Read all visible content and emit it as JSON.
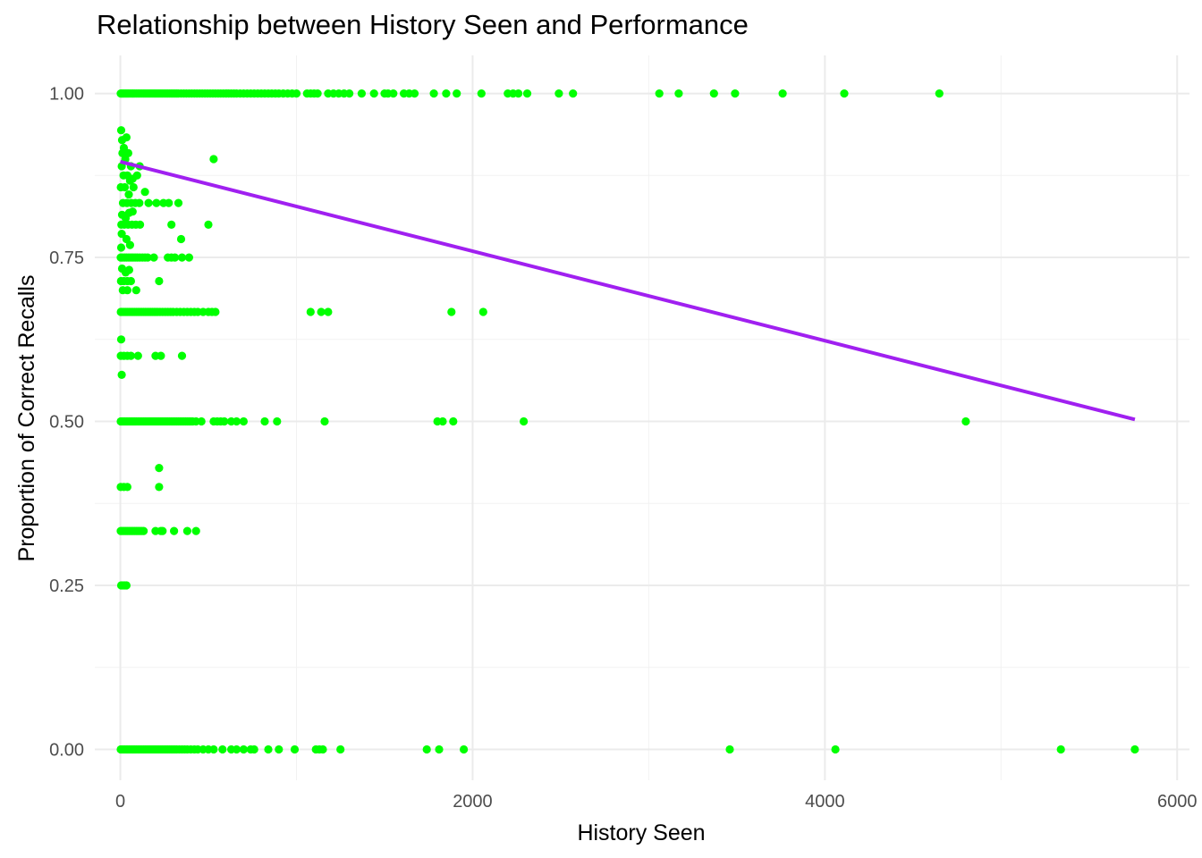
{
  "chart_data": {
    "type": "scatter",
    "title": "Relationship between History Seen and Performance",
    "xlabel": "History Seen",
    "ylabel": "Proportion of Correct Recalls",
    "xlim": [
      -145,
      6070
    ],
    "ylim": [
      -0.047,
      1.058
    ],
    "x_ticks": [
      0,
      2000,
      4000,
      6000
    ],
    "x_tick_labels": [
      "0",
      "2000",
      "4000",
      "6000"
    ],
    "y_ticks": [
      0,
      0.25,
      0.5,
      0.75,
      1.0
    ],
    "y_tick_labels": [
      "0.00",
      "0.25",
      "0.50",
      "0.75",
      "1.00"
    ],
    "grid": true,
    "legend": "none",
    "point_color": "#00ff00",
    "line_color": "#a020f0",
    "points": [
      [
        2,
        1.0
      ],
      [
        8,
        1.0
      ],
      [
        15,
        1.0
      ],
      [
        22,
        1.0
      ],
      [
        30,
        1.0
      ],
      [
        38,
        1.0
      ],
      [
        46,
        1.0
      ],
      [
        55,
        1.0
      ],
      [
        64,
        1.0
      ],
      [
        72,
        1.0
      ],
      [
        80,
        1.0
      ],
      [
        90,
        1.0
      ],
      [
        100,
        1.0
      ],
      [
        110,
        1.0
      ],
      [
        120,
        1.0
      ],
      [
        130,
        1.0
      ],
      [
        140,
        1.0
      ],
      [
        150,
        1.0
      ],
      [
        160,
        1.0
      ],
      [
        170,
        1.0
      ],
      [
        180,
        1.0
      ],
      [
        190,
        1.0
      ],
      [
        200,
        1.0
      ],
      [
        210,
        1.0
      ],
      [
        220,
        1.0
      ],
      [
        230,
        1.0
      ],
      [
        240,
        1.0
      ],
      [
        250,
        1.0
      ],
      [
        260,
        1.0
      ],
      [
        270,
        1.0
      ],
      [
        280,
        1.0
      ],
      [
        290,
        1.0
      ],
      [
        300,
        1.0
      ],
      [
        310,
        1.0
      ],
      [
        320,
        1.0
      ],
      [
        330,
        1.0
      ],
      [
        345,
        1.0
      ],
      [
        360,
        1.0
      ],
      [
        375,
        1.0
      ],
      [
        390,
        1.0
      ],
      [
        405,
        1.0
      ],
      [
        420,
        1.0
      ],
      [
        435,
        1.0
      ],
      [
        450,
        1.0
      ],
      [
        465,
        1.0
      ],
      [
        480,
        1.0
      ],
      [
        495,
        1.0
      ],
      [
        510,
        1.0
      ],
      [
        525,
        1.0
      ],
      [
        540,
        1.0
      ],
      [
        555,
        1.0
      ],
      [
        570,
        1.0
      ],
      [
        585,
        1.0
      ],
      [
        600,
        1.0
      ],
      [
        615,
        1.0
      ],
      [
        630,
        1.0
      ],
      [
        645,
        1.0
      ],
      [
        660,
        1.0
      ],
      [
        680,
        1.0
      ],
      [
        700,
        1.0
      ],
      [
        720,
        1.0
      ],
      [
        740,
        1.0
      ],
      [
        760,
        1.0
      ],
      [
        780,
        1.0
      ],
      [
        800,
        1.0
      ],
      [
        820,
        1.0
      ],
      [
        840,
        1.0
      ],
      [
        860,
        1.0
      ],
      [
        880,
        1.0
      ],
      [
        900,
        1.0
      ],
      [
        925,
        1.0
      ],
      [
        950,
        1.0
      ],
      [
        975,
        1.0
      ],
      [
        1000,
        1.0
      ],
      [
        1060,
        1.0
      ],
      [
        1080,
        1.0
      ],
      [
        1100,
        1.0
      ],
      [
        1120,
        1.0
      ],
      [
        1180,
        1.0
      ],
      [
        1210,
        1.0
      ],
      [
        1240,
        1.0
      ],
      [
        1270,
        1.0
      ],
      [
        1300,
        1.0
      ],
      [
        1370,
        1.0
      ],
      [
        1440,
        1.0
      ],
      [
        1500,
        1.0
      ],
      [
        1520,
        1.0
      ],
      [
        1550,
        1.0
      ],
      [
        1610,
        1.0
      ],
      [
        1640,
        1.0
      ],
      [
        1670,
        1.0
      ],
      [
        1780,
        1.0
      ],
      [
        1850,
        1.0
      ],
      [
        1910,
        1.0
      ],
      [
        2050,
        1.0
      ],
      [
        2200,
        1.0
      ],
      [
        2230,
        1.0
      ],
      [
        2260,
        1.0
      ],
      [
        2310,
        1.0
      ],
      [
        2490,
        1.0
      ],
      [
        2570,
        1.0
      ],
      [
        3060,
        1.0
      ],
      [
        3170,
        1.0
      ],
      [
        3370,
        1.0
      ],
      [
        3490,
        1.0
      ],
      [
        3760,
        1.0
      ],
      [
        4110,
        1.0
      ],
      [
        4650,
        1.0
      ],
      [
        5,
        0.944
      ],
      [
        10,
        0.929
      ],
      [
        20,
        0.917
      ],
      [
        35,
        0.933
      ],
      [
        12,
        0.909
      ],
      [
        28,
        0.9
      ],
      [
        45,
        0.909
      ],
      [
        60,
        0.889
      ],
      [
        8,
        0.889
      ],
      [
        18,
        0.875
      ],
      [
        40,
        0.875
      ],
      [
        55,
        0.867
      ],
      [
        70,
        0.87
      ],
      [
        95,
        0.875
      ],
      [
        110,
        0.889
      ],
      [
        3,
        0.857
      ],
      [
        25,
        0.857
      ],
      [
        48,
        0.846
      ],
      [
        75,
        0.857
      ],
      [
        15,
        0.833
      ],
      [
        38,
        0.833
      ],
      [
        62,
        0.833
      ],
      [
        85,
        0.833
      ],
      [
        108,
        0.833
      ],
      [
        160,
        0.833
      ],
      [
        205,
        0.833
      ],
      [
        245,
        0.833
      ],
      [
        275,
        0.833
      ],
      [
        330,
        0.833
      ],
      [
        6,
        0.8
      ],
      [
        22,
        0.8
      ],
      [
        44,
        0.8
      ],
      [
        66,
        0.8
      ],
      [
        88,
        0.8
      ],
      [
        112,
        0.8
      ],
      [
        290,
        0.8
      ],
      [
        500,
        0.8
      ],
      [
        530,
        0.9
      ],
      [
        140,
        0.85
      ],
      [
        10,
        0.815
      ],
      [
        30,
        0.81
      ],
      [
        50,
        0.818
      ],
      [
        70,
        0.82
      ],
      [
        8,
        0.786
      ],
      [
        35,
        0.778
      ],
      [
        5,
        0.765
      ],
      [
        55,
        0.769
      ],
      [
        345,
        0.778
      ],
      [
        2,
        0.75
      ],
      [
        12,
        0.75
      ],
      [
        24,
        0.75
      ],
      [
        36,
        0.75
      ],
      [
        48,
        0.75
      ],
      [
        60,
        0.75
      ],
      [
        72,
        0.75
      ],
      [
        84,
        0.75
      ],
      [
        96,
        0.75
      ],
      [
        110,
        0.75
      ],
      [
        125,
        0.75
      ],
      [
        140,
        0.75
      ],
      [
        155,
        0.75
      ],
      [
        190,
        0.75
      ],
      [
        270,
        0.75
      ],
      [
        290,
        0.75
      ],
      [
        310,
        0.75
      ],
      [
        350,
        0.75
      ],
      [
        390,
        0.75
      ],
      [
        10,
        0.733
      ],
      [
        30,
        0.727
      ],
      [
        50,
        0.731
      ],
      [
        4,
        0.714
      ],
      [
        20,
        0.714
      ],
      [
        40,
        0.714
      ],
      [
        60,
        0.714
      ],
      [
        220,
        0.714
      ],
      [
        14,
        0.7
      ],
      [
        40,
        0.7
      ],
      [
        90,
        0.7
      ],
      [
        3,
        0.667
      ],
      [
        12,
        0.667
      ],
      [
        22,
        0.667
      ],
      [
        32,
        0.667
      ],
      [
        42,
        0.667
      ],
      [
        52,
        0.667
      ],
      [
        62,
        0.667
      ],
      [
        72,
        0.667
      ],
      [
        82,
        0.667
      ],
      [
        92,
        0.667
      ],
      [
        102,
        0.667
      ],
      [
        112,
        0.667
      ],
      [
        122,
        0.667
      ],
      [
        132,
        0.667
      ],
      [
        142,
        0.667
      ],
      [
        152,
        0.667
      ],
      [
        162,
        0.667
      ],
      [
        172,
        0.667
      ],
      [
        182,
        0.667
      ],
      [
        192,
        0.667
      ],
      [
        202,
        0.667
      ],
      [
        212,
        0.667
      ],
      [
        225,
        0.667
      ],
      [
        240,
        0.667
      ],
      [
        255,
        0.667
      ],
      [
        270,
        0.667
      ],
      [
        285,
        0.667
      ],
      [
        300,
        0.667
      ],
      [
        320,
        0.667
      ],
      [
        340,
        0.667
      ],
      [
        360,
        0.667
      ],
      [
        380,
        0.667
      ],
      [
        400,
        0.667
      ],
      [
        420,
        0.667
      ],
      [
        440,
        0.667
      ],
      [
        470,
        0.667
      ],
      [
        500,
        0.667
      ],
      [
        520,
        0.667
      ],
      [
        540,
        0.667
      ],
      [
        1080,
        0.667
      ],
      [
        1140,
        0.667
      ],
      [
        1180,
        0.667
      ],
      [
        1880,
        0.667
      ],
      [
        2060,
        0.667
      ],
      [
        5,
        0.625
      ],
      [
        3,
        0.6
      ],
      [
        20,
        0.6
      ],
      [
        40,
        0.6
      ],
      [
        60,
        0.6
      ],
      [
        100,
        0.6
      ],
      [
        200,
        0.6
      ],
      [
        230,
        0.6
      ],
      [
        350,
        0.6
      ],
      [
        8,
        0.571
      ],
      [
        2,
        0.5
      ],
      [
        10,
        0.5
      ],
      [
        18,
        0.5
      ],
      [
        26,
        0.5
      ],
      [
        34,
        0.5
      ],
      [
        42,
        0.5
      ],
      [
        50,
        0.5
      ],
      [
        58,
        0.5
      ],
      [
        66,
        0.5
      ],
      [
        74,
        0.5
      ],
      [
        82,
        0.5
      ],
      [
        90,
        0.5
      ],
      [
        100,
        0.5
      ],
      [
        110,
        0.5
      ],
      [
        120,
        0.5
      ],
      [
        130,
        0.5
      ],
      [
        140,
        0.5
      ],
      [
        150,
        0.5
      ],
      [
        160,
        0.5
      ],
      [
        170,
        0.5
      ],
      [
        180,
        0.5
      ],
      [
        190,
        0.5
      ],
      [
        200,
        0.5
      ],
      [
        210,
        0.5
      ],
      [
        220,
        0.5
      ],
      [
        230,
        0.5
      ],
      [
        240,
        0.5
      ],
      [
        250,
        0.5
      ],
      [
        260,
        0.5
      ],
      [
        270,
        0.5
      ],
      [
        280,
        0.5
      ],
      [
        290,
        0.5
      ],
      [
        300,
        0.5
      ],
      [
        310,
        0.5
      ],
      [
        320,
        0.5
      ],
      [
        330,
        0.5
      ],
      [
        340,
        0.5
      ],
      [
        350,
        0.5
      ],
      [
        360,
        0.5
      ],
      [
        370,
        0.5
      ],
      [
        380,
        0.5
      ],
      [
        390,
        0.5
      ],
      [
        400,
        0.5
      ],
      [
        410,
        0.5
      ],
      [
        430,
        0.5
      ],
      [
        460,
        0.5
      ],
      [
        530,
        0.5
      ],
      [
        550,
        0.5
      ],
      [
        570,
        0.5
      ],
      [
        590,
        0.5
      ],
      [
        630,
        0.5
      ],
      [
        660,
        0.5
      ],
      [
        700,
        0.5
      ],
      [
        820,
        0.5
      ],
      [
        890,
        0.5
      ],
      [
        1160,
        0.5
      ],
      [
        1800,
        0.5
      ],
      [
        1830,
        0.5
      ],
      [
        1890,
        0.5
      ],
      [
        2290,
        0.5
      ],
      [
        4800,
        0.5
      ],
      [
        220,
        0.429
      ],
      [
        2,
        0.4
      ],
      [
        20,
        0.4
      ],
      [
        40,
        0.4
      ],
      [
        220,
        0.4
      ],
      [
        2,
        0.333
      ],
      [
        12,
        0.333
      ],
      [
        22,
        0.333
      ],
      [
        32,
        0.333
      ],
      [
        42,
        0.333
      ],
      [
        52,
        0.333
      ],
      [
        62,
        0.333
      ],
      [
        72,
        0.333
      ],
      [
        82,
        0.333
      ],
      [
        92,
        0.333
      ],
      [
        102,
        0.333
      ],
      [
        112,
        0.333
      ],
      [
        122,
        0.333
      ],
      [
        132,
        0.333
      ],
      [
        200,
        0.333
      ],
      [
        230,
        0.333
      ],
      [
        240,
        0.333
      ],
      [
        305,
        0.333
      ],
      [
        380,
        0.333
      ],
      [
        430,
        0.333
      ],
      [
        5,
        0.25
      ],
      [
        15,
        0.25
      ],
      [
        25,
        0.25
      ],
      [
        35,
        0.25
      ],
      [
        2,
        0.0
      ],
      [
        10,
        0.0
      ],
      [
        18,
        0.0
      ],
      [
        26,
        0.0
      ],
      [
        34,
        0.0
      ],
      [
        42,
        0.0
      ],
      [
        50,
        0.0
      ],
      [
        58,
        0.0
      ],
      [
        66,
        0.0
      ],
      [
        74,
        0.0
      ],
      [
        82,
        0.0
      ],
      [
        90,
        0.0
      ],
      [
        100,
        0.0
      ],
      [
        110,
        0.0
      ],
      [
        120,
        0.0
      ],
      [
        130,
        0.0
      ],
      [
        140,
        0.0
      ],
      [
        150,
        0.0
      ],
      [
        160,
        0.0
      ],
      [
        170,
        0.0
      ],
      [
        180,
        0.0
      ],
      [
        190,
        0.0
      ],
      [
        200,
        0.0
      ],
      [
        210,
        0.0
      ],
      [
        220,
        0.0
      ],
      [
        230,
        0.0
      ],
      [
        240,
        0.0
      ],
      [
        250,
        0.0
      ],
      [
        260,
        0.0
      ],
      [
        270,
        0.0
      ],
      [
        280,
        0.0
      ],
      [
        290,
        0.0
      ],
      [
        300,
        0.0
      ],
      [
        310,
        0.0
      ],
      [
        320,
        0.0
      ],
      [
        335,
        0.0
      ],
      [
        350,
        0.0
      ],
      [
        365,
        0.0
      ],
      [
        380,
        0.0
      ],
      [
        400,
        0.0
      ],
      [
        420,
        0.0
      ],
      [
        440,
        0.0
      ],
      [
        470,
        0.0
      ],
      [
        500,
        0.0
      ],
      [
        530,
        0.0
      ],
      [
        580,
        0.0
      ],
      [
        630,
        0.0
      ],
      [
        660,
        0.0
      ],
      [
        700,
        0.0
      ],
      [
        740,
        0.0
      ],
      [
        760,
        0.0
      ],
      [
        840,
        0.0
      ],
      [
        900,
        0.0
      ],
      [
        990,
        0.0
      ],
      [
        1110,
        0.0
      ],
      [
        1130,
        0.0
      ],
      [
        1150,
        0.0
      ],
      [
        1250,
        0.0
      ],
      [
        1740,
        0.0
      ],
      [
        1810,
        0.0
      ],
      [
        1950,
        0.0
      ],
      [
        3460,
        0.0
      ],
      [
        4060,
        0.0
      ],
      [
        5340,
        0.0
      ],
      [
        5760,
        0.0
      ]
    ],
    "regression": {
      "x": [
        0,
        5760
      ],
      "y": [
        0.896,
        0.503
      ]
    }
  }
}
